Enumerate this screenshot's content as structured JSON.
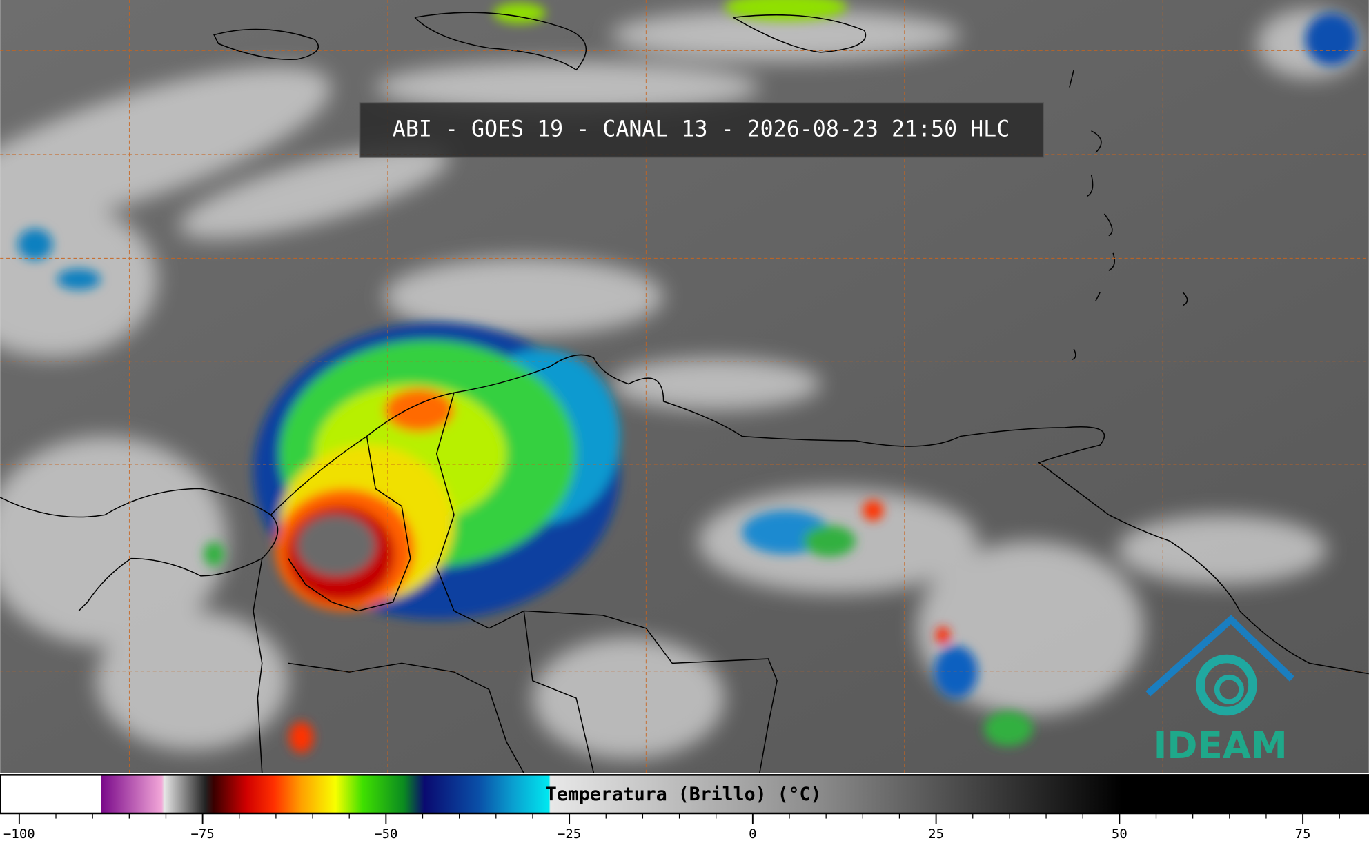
{
  "title": "ABI - GOES 19 - CANAL 13 - 2026-08-23 21:50 HLC",
  "logo": "IDEAM",
  "colorbar": {
    "label": "Temperatura (Brillo) (°C)",
    "range": [
      -102.6,
      84
    ],
    "ticks": [
      {
        "value": -100,
        "label": "−100"
      },
      {
        "value": -75,
        "label": "−75"
      },
      {
        "value": -50,
        "label": "−50"
      },
      {
        "value": -25,
        "label": "−25"
      },
      0,
      25,
      50,
      75
    ]
  }
}
